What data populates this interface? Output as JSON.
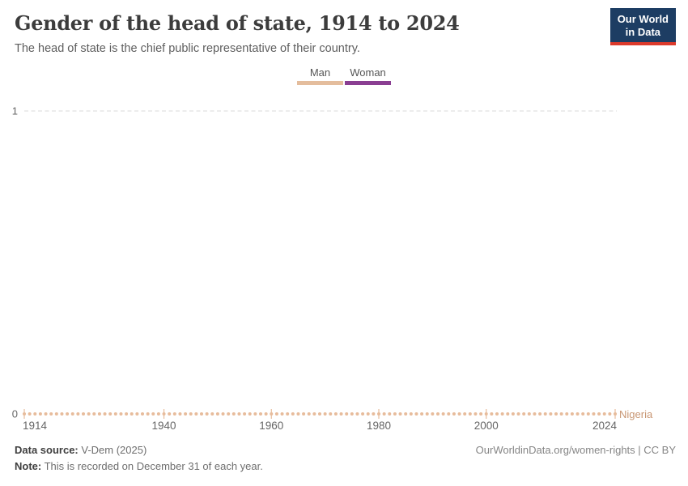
{
  "header": {
    "title": "Gender of the head of state, 1914 to 2024",
    "subtitle": "The head of state is the chief public representative of their country.",
    "logo_line1": "Our World",
    "logo_line2": "in Data",
    "logo_bg": "#1d3d63",
    "logo_accent": "#dc3a2b"
  },
  "legend": {
    "items": [
      {
        "label": "Man",
        "color": "#e4bd9d"
      },
      {
        "label": "Woman",
        "color": "#8a3e92"
      }
    ]
  },
  "chart_data": {
    "type": "line",
    "title": "Gender of the head of state, 1914 to 2024",
    "xlabel": "",
    "ylabel": "",
    "xlim": [
      1914,
      2024
    ],
    "ylim": [
      0,
      1
    ],
    "x_ticks": [
      1914,
      1940,
      1960,
      1980,
      2000,
      2024
    ],
    "y_ticks": [
      0,
      1
    ],
    "grid": "dashed horizontal gridline at y=1 only",
    "legend_position": "top-center",
    "category_meaning": {
      "0": "Man",
      "1": "Woman"
    },
    "series": [
      {
        "name": "Nigeria",
        "color": "#e7bc9c",
        "label_color": "#c89673",
        "marker": "dot-per-year",
        "years_start": 1914,
        "years_end": 2024,
        "step": 1,
        "constant_value": 0,
        "value_meaning": "Man (head of state was a man every year 1914–2024)"
      }
    ]
  },
  "footer": {
    "source_label": "Data source:",
    "source_value": " V-Dem (2025)",
    "note_label": "Note:",
    "note_value": " This is recorded on December 31 of each year.",
    "link": "OurWorldinData.org/women-rights | CC BY"
  }
}
